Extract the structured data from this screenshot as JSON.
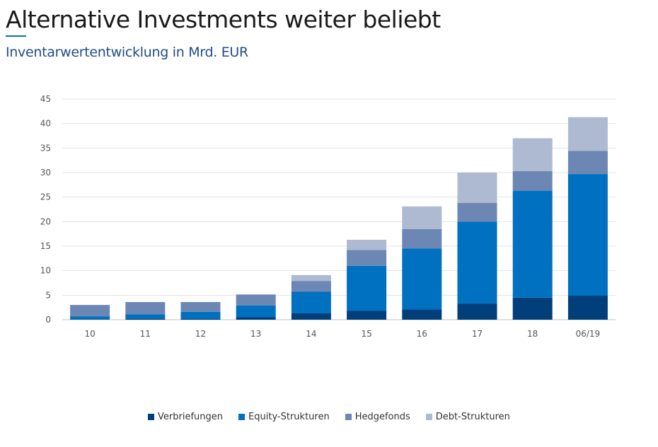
{
  "header": {
    "title": "Alternative Investments weiter beliebt",
    "subtitle": "Inventarwertentwicklung in Mrd. EUR"
  },
  "chart_data": {
    "type": "bar",
    "stacked": true,
    "categories": [
      "10",
      "11",
      "12",
      "13",
      "14",
      "15",
      "16",
      "17",
      "18",
      "06/19"
    ],
    "series": [
      {
        "name": "Verbriefungen",
        "color": "#003f7a",
        "values": [
          0.1,
          0.2,
          0.2,
          0.5,
          1.3,
          1.8,
          2.1,
          3.3,
          4.5,
          4.9
        ]
      },
      {
        "name": "Equity-Strukturen",
        "color": "#0070c0",
        "values": [
          0.6,
          0.9,
          1.4,
          2.4,
          4.4,
          9.2,
          12.4,
          16.7,
          21.8,
          24.8
        ]
      },
      {
        "name": "Hedgefonds",
        "color": "#6c87b3",
        "values": [
          2.3,
          2.5,
          2.0,
          2.2,
          2.2,
          3.2,
          4.0,
          3.8,
          4.0,
          4.7
        ]
      },
      {
        "name": "Debt-Strukturen",
        "color": "#adbad2",
        "values": [
          0,
          0,
          0,
          0.1,
          1.2,
          2.1,
          4.6,
          6.2,
          6.7,
          6.9
        ]
      }
    ],
    "ylim": [
      0,
      45
    ],
    "yticks": [
      0,
      5,
      10,
      15,
      20,
      25,
      30,
      35,
      40,
      45
    ],
    "grid": true,
    "legend_position": "bottom-center"
  }
}
